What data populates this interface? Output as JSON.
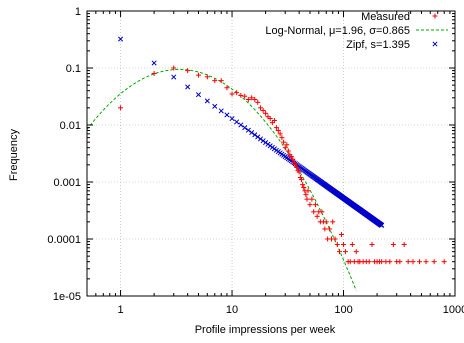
{
  "chart_data": {
    "type": "scatter",
    "title": "",
    "xlabel": "Profile impressions per week",
    "ylabel": "Frequency",
    "xscale": "log",
    "yscale": "log",
    "xlim": [
      0.5,
      1000
    ],
    "ylim": [
      1e-05,
      1
    ],
    "grid": true,
    "legend_position": "top-right",
    "x_ticks": [
      {
        "value": 1,
        "label": "1"
      },
      {
        "value": 10,
        "label": "10"
      },
      {
        "value": 100,
        "label": "100"
      },
      {
        "value": 1000,
        "label": "1000"
      }
    ],
    "y_ticks": [
      {
        "value": 1,
        "label": "1"
      },
      {
        "value": 0.1,
        "label": "0.1"
      },
      {
        "value": 0.01,
        "label": "0.01"
      },
      {
        "value": 0.001,
        "label": "0.001"
      },
      {
        "value": 0.0001,
        "label": "0.0001"
      },
      {
        "value": 1e-05,
        "label": "1e-05"
      }
    ],
    "series": [
      {
        "name": "Measured",
        "kind": "points",
        "marker": "+",
        "color": "#ff0000",
        "points": [
          [
            1,
            0.02
          ],
          [
            2,
            0.08
          ],
          [
            3,
            0.1
          ],
          [
            4,
            0.09
          ],
          [
            5,
            0.075
          ],
          [
            6,
            0.07
          ],
          [
            7,
            0.06
          ],
          [
            8,
            0.06
          ],
          [
            9,
            0.045
          ],
          [
            10,
            0.035
          ],
          [
            11,
            0.037
          ],
          [
            12,
            0.033
          ],
          [
            13,
            0.032
          ],
          [
            14,
            0.028
          ],
          [
            15,
            0.03
          ],
          [
            16,
            0.028
          ],
          [
            17,
            0.025
          ],
          [
            18,
            0.02
          ],
          [
            19,
            0.018
          ],
          [
            20,
            0.016
          ],
          [
            21,
            0.014
          ],
          [
            22,
            0.013
          ],
          [
            23,
            0.011
          ],
          [
            24,
            0.012
          ],
          [
            25,
            0.009
          ],
          [
            26,
            0.008
          ],
          [
            27,
            0.007
          ],
          [
            28,
            0.006
          ],
          [
            29,
            0.005
          ],
          [
            30,
            0.004
          ],
          [
            31,
            0.0045
          ],
          [
            32,
            0.0035
          ],
          [
            33,
            0.003
          ],
          [
            34,
            0.0028
          ],
          [
            35,
            0.0025
          ],
          [
            36,
            0.0022
          ],
          [
            37,
            0.002
          ],
          [
            38,
            0.0018
          ],
          [
            39,
            0.0016
          ],
          [
            40,
            0.0015
          ],
          [
            41,
            0.0012
          ],
          [
            42,
            0.0011
          ],
          [
            43,
            0.0009
          ],
          [
            44,
            0.0008
          ],
          [
            45,
            0.0007
          ],
          [
            46,
            0.0006
          ],
          [
            47,
            0.0005
          ],
          [
            48,
            0.0007
          ],
          [
            50,
            0.0004
          ],
          [
            52,
            0.0005
          ],
          [
            54,
            0.0003
          ],
          [
            56,
            0.0004
          ],
          [
            58,
            0.00025
          ],
          [
            60,
            0.0003
          ],
          [
            62,
            0.0002
          ],
          [
            64,
            0.0003
          ],
          [
            66,
            0.0002
          ],
          [
            68,
            0.00015
          ],
          [
            70,
            0.0002
          ],
          [
            72,
            0.0001
          ],
          [
            75,
            0.00015
          ],
          [
            78,
            0.0001
          ],
          [
            80,
            0.0002
          ],
          [
            84,
            0.0001
          ],
          [
            88,
            8e-05
          ],
          [
            92,
            6e-05
          ],
          [
            96,
            0.00012
          ],
          [
            100,
            8e-05
          ],
          [
            104,
            6e-05
          ],
          [
            110,
            4e-05
          ],
          [
            115,
            4e-05
          ],
          [
            120,
            8e-05
          ],
          [
            125,
            4e-05
          ],
          [
            130,
            6e-05
          ],
          [
            135,
            4e-05
          ],
          [
            140,
            4e-05
          ],
          [
            150,
            4e-05
          ],
          [
            160,
            4e-05
          ],
          [
            170,
            4e-05
          ],
          [
            180,
            8e-05
          ],
          [
            190,
            4e-05
          ],
          [
            200,
            4e-05
          ],
          [
            210,
            4e-05
          ],
          [
            220,
            4e-05
          ],
          [
            240,
            4e-05
          ],
          [
            260,
            4e-05
          ],
          [
            280,
            8e-05
          ],
          [
            300,
            4e-05
          ],
          [
            320,
            4e-05
          ],
          [
            350,
            8e-05
          ],
          [
            380,
            4e-05
          ],
          [
            420,
            4e-05
          ],
          [
            480,
            4e-05
          ],
          [
            550,
            4e-05
          ],
          [
            650,
            4e-05
          ],
          [
            800,
            4e-05
          ]
        ]
      },
      {
        "name": "Log-Normal, μ=1.96, σ=0.865",
        "kind": "line",
        "dash": true,
        "color": "#00aa00",
        "mu": 1.96,
        "sigma": 0.865,
        "x_range": [
          0.5,
          130
        ]
      },
      {
        "name": "Zipf, s=1.395",
        "kind": "points",
        "marker": "x",
        "color": "#0000cc",
        "s": 1.395,
        "x_range": [
          1,
          220
        ]
      }
    ]
  }
}
